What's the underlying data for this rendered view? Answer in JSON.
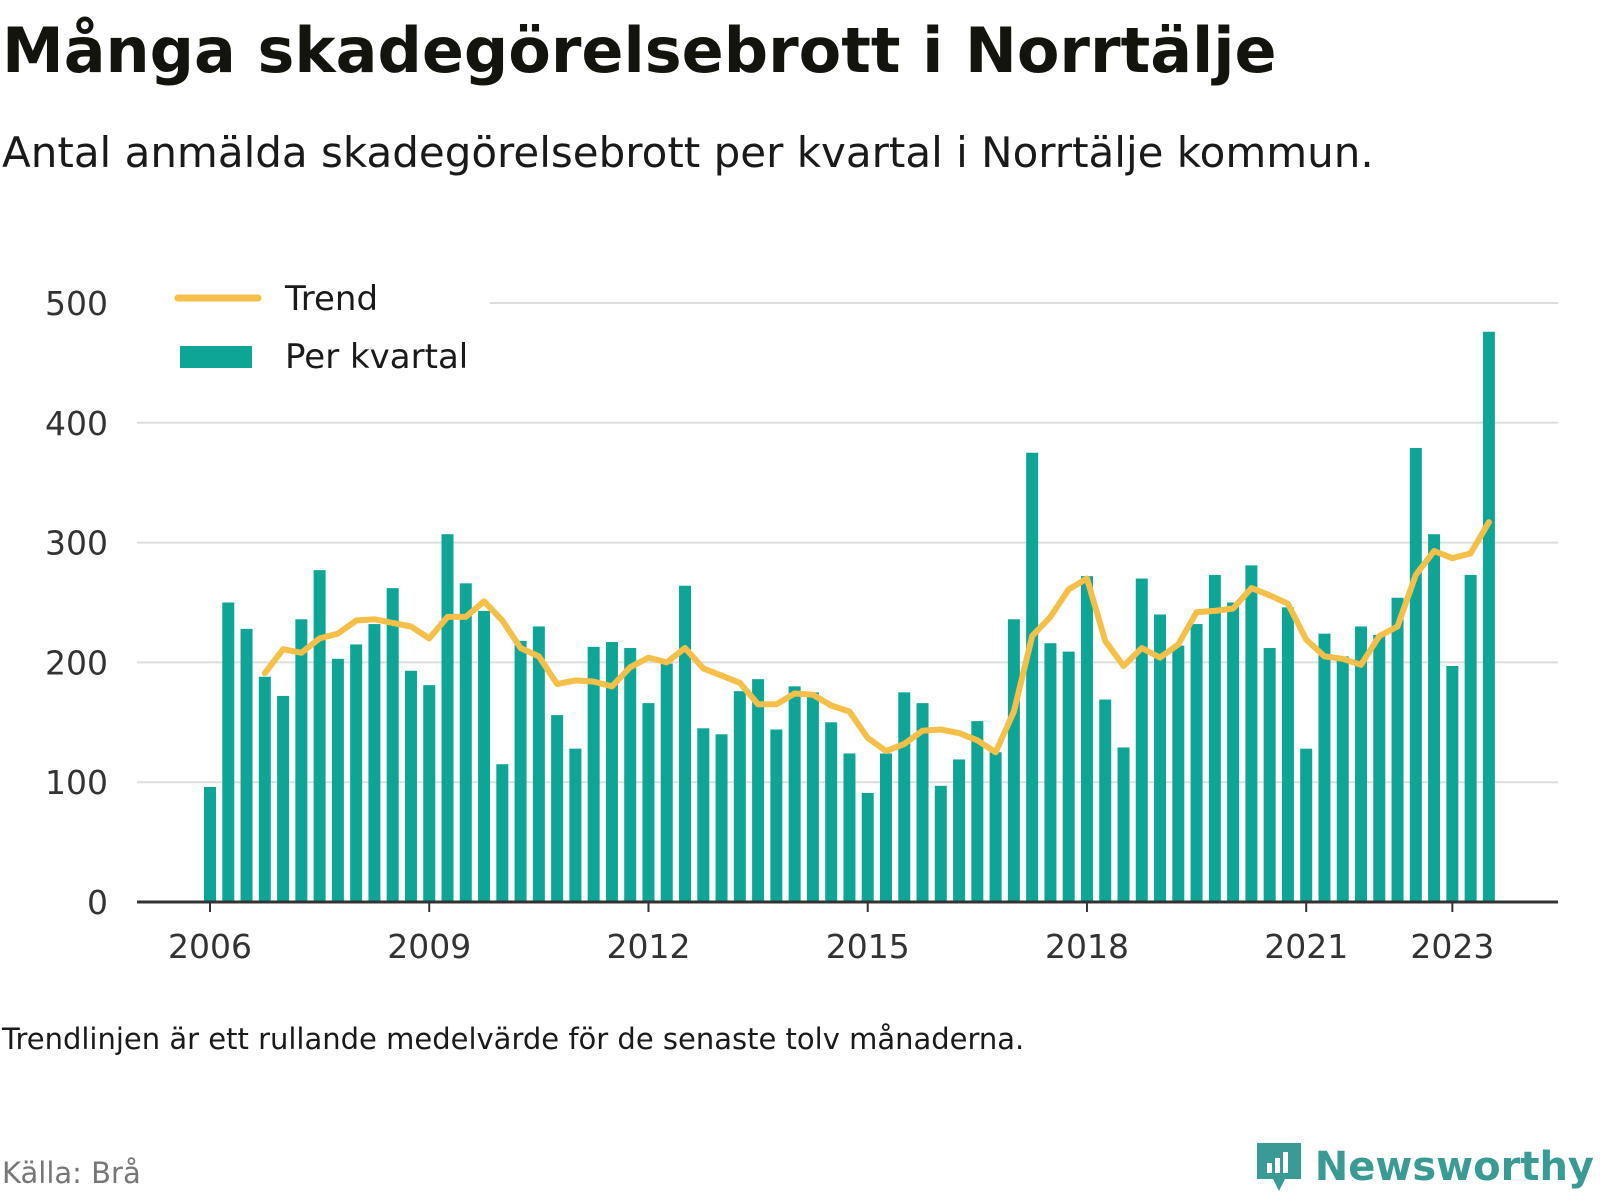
{
  "header": {
    "title": "Många skadegörelsebrott i Norrtälje",
    "subtitle": "Antal anmälda skadegörelsebrott per kvartal i Norrtälje kommun."
  },
  "footer": {
    "note": "Trendlinjen är ett rullande medelvärde för de senaste tolv månaderna.",
    "source": "Källa: Brå",
    "brand": "Newsworthy"
  },
  "colors": {
    "bars": "#0ea597",
    "trend": "#f5c04a",
    "grid": "#dddddd",
    "axis": "#333333",
    "brand": "#3a9a94"
  },
  "chart_data": {
    "type": "bar",
    "x_start": "2006 Q1",
    "x_step": "1 kvartal",
    "ylim": [
      0,
      500
    ],
    "yticks": [
      0,
      100,
      200,
      300,
      400,
      500
    ],
    "xticks": [
      "2006",
      "2009",
      "2012",
      "2015",
      "2018",
      "2021",
      "2023"
    ],
    "legend_placement": "top-left",
    "grid": true,
    "series": [
      {
        "name": "Per kvartal",
        "type": "bar",
        "values": [
          96,
          250,
          228,
          188,
          172,
          236,
          277,
          203,
          215,
          232,
          262,
          193,
          181,
          307,
          266,
          243,
          115,
          218,
          230,
          156,
          128,
          213,
          217,
          212,
          166,
          199,
          264,
          145,
          140,
          176,
          186,
          144,
          180,
          175,
          150,
          124,
          91,
          124,
          175,
          166,
          97,
          119,
          151,
          125,
          236,
          375,
          216,
          209,
          272,
          169,
          129,
          270,
          240,
          214,
          232,
          273,
          250,
          281,
          212,
          246,
          128,
          224,
          205,
          230,
          223,
          254,
          379,
          307,
          197,
          273,
          476
        ]
      },
      {
        "name": "Trend",
        "type": "line",
        "values": [
          null,
          null,
          null,
          191,
          211,
          208,
          220,
          224,
          235,
          236,
          233,
          230,
          220,
          238,
          238,
          251,
          235,
          212,
          205,
          182,
          185,
          184,
          180,
          196,
          204,
          200,
          212,
          195,
          189,
          183,
          165,
          165,
          174,
          173,
          164,
          159,
          137,
          126,
          132,
          143,
          144,
          141,
          135,
          125,
          159,
          222,
          238,
          261,
          270,
          218,
          197,
          212,
          204,
          215,
          242,
          243,
          245,
          262,
          256,
          249,
          219,
          205,
          203,
          198,
          222,
          230,
          273,
          293,
          287,
          291,
          317
        ]
      }
    ]
  }
}
